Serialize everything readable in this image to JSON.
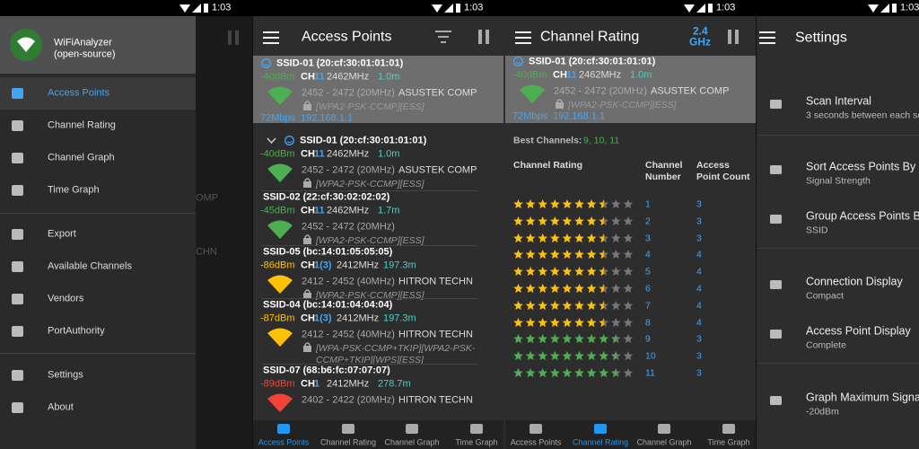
{
  "status_bar": {
    "time": "1:03"
  },
  "drawer": {
    "app_name": "WiFiAnalyzer",
    "app_subtitle": "(open-source)",
    "items": [
      "Access Points",
      "Channel Rating",
      "Channel Graph",
      "Time Graph",
      "Export",
      "Available Channels",
      "Vendors",
      "PortAuthority",
      "Settings",
      "About"
    ],
    "background_fragments": [
      "OMP",
      "CHN"
    ]
  },
  "tabs": [
    "Access Points",
    "Channel Rating",
    "Channel Graph",
    "Time Graph"
  ],
  "connected": {
    "ssid": "SSID-01 (20:cf:30:01:01:01)",
    "level": "-40dBm",
    "ch": "CH",
    "channel": "11",
    "frequency": "2462MHz",
    "distance": "1.0m",
    "range": "2452 - 2472 (20MHz)",
    "vendor": "ASUSTEK COMP",
    "security": "[WPA2-PSK-CCMP][ESS]",
    "speed": "72Mbps",
    "ip": "192.168.1.1",
    "color": "#4caf50"
  },
  "access_points": {
    "title": "Access Points",
    "list": [
      {
        "ssid": "SSID-01 (20:cf:30:01:01:01)",
        "level": "-40dBm",
        "ch": "CH",
        "channel": "11",
        "frequency": "2462MHz",
        "distance": "1.0m",
        "range": "2452 - 2472 (20MHz)",
        "vendor": "ASUSTEK COMP",
        "security": "[WPA2-PSK-CCMP][ESS]",
        "color": "#4caf50"
      },
      {
        "ssid": "SSID-02 (22:cf:30:02:02:02)",
        "level": "-45dBm",
        "ch": "CH",
        "channel": "11",
        "frequency": "2462MHz",
        "distance": "1.7m",
        "range": "2452 - 2472 (20MHz)",
        "security": "[WPA2-PSK-CCMP][ESS]",
        "color": "#4caf50"
      },
      {
        "ssid": "SSID-05 (bc:14:01:05:05:05)",
        "level": "-86dBm",
        "ch": "CH",
        "channel": "1(3)",
        "frequency": "2412MHz",
        "distance": "197.3m",
        "range": "2412 - 2452 (40MHz)",
        "vendor": "HITRON TECHN",
        "security": "[WPA2-PSK-CCMP][ESS]",
        "color": "#ffc107"
      },
      {
        "ssid": "SSID-04 (bc:14:01:04:04:04)",
        "level": "-87dBm",
        "ch": "CH",
        "channel": "1(3)",
        "frequency": "2412MHz",
        "distance": "197.3m",
        "range": "2412 - 2452 (40MHz)",
        "vendor": "HITRON TECHN",
        "security": "[WPA-PSK-CCMP+TKIP][WPA2-PSK-CCMP+TKIP][WPS][ESS]",
        "color": "#ffc107"
      },
      {
        "ssid": "SSID-07 (68:b6:fc:07:07:07)",
        "level": "-89dBm",
        "ch": "CH",
        "channel": "1",
        "frequency": "2412MHz",
        "distance": "278.7m",
        "range": "2402 - 2422 (20MHz)",
        "vendor": "HITRON TECHN",
        "color": "#f44336"
      }
    ]
  },
  "channel_rating": {
    "title": "Channel Rating",
    "band": [
      "2.4",
      "GHz"
    ],
    "best_label": "Best Channels:",
    "best_value": "9, 10, 11",
    "headers": [
      "Channel Rating",
      "Channel Number",
      "Access Point Count"
    ],
    "rows": [
      {
        "rating": 7.5,
        "channel": "1",
        "count": "3",
        "color": "#ffc107"
      },
      {
        "rating": 7.5,
        "channel": "2",
        "count": "3",
        "color": "#ffc107"
      },
      {
        "rating": 7.5,
        "channel": "3",
        "count": "3",
        "color": "#ffc107"
      },
      {
        "rating": 7.5,
        "channel": "4",
        "count": "4",
        "color": "#ffc107"
      },
      {
        "rating": 7.5,
        "channel": "5",
        "count": "4",
        "color": "#ffc107"
      },
      {
        "rating": 7.5,
        "channel": "6",
        "count": "4",
        "color": "#ffc107"
      },
      {
        "rating": 7.5,
        "channel": "7",
        "count": "4",
        "color": "#ffc107"
      },
      {
        "rating": 7.5,
        "channel": "8",
        "count": "4",
        "color": "#ffc107"
      },
      {
        "rating": 8.5,
        "channel": "9",
        "count": "3",
        "color": "#4caf50"
      },
      {
        "rating": 8.5,
        "channel": "10",
        "count": "3",
        "color": "#4caf50"
      },
      {
        "rating": 8.5,
        "channel": "11",
        "count": "3",
        "color": "#4caf50"
      }
    ]
  },
  "settings": {
    "title": "Settings",
    "items": [
      {
        "title": "Scan Interval",
        "subtitle": "3 seconds between each sc"
      },
      {
        "title": "Sort Access Points By",
        "subtitle": "Signal Strength"
      },
      {
        "title": "Group Access Points By",
        "subtitle": "SSID"
      },
      {
        "title": "Connection Display",
        "subtitle": "Compact"
      },
      {
        "title": "Access Point Display",
        "subtitle": "Complete"
      },
      {
        "title": "Graph Maximum Signal",
        "subtitle": "-20dBm"
      }
    ]
  }
}
